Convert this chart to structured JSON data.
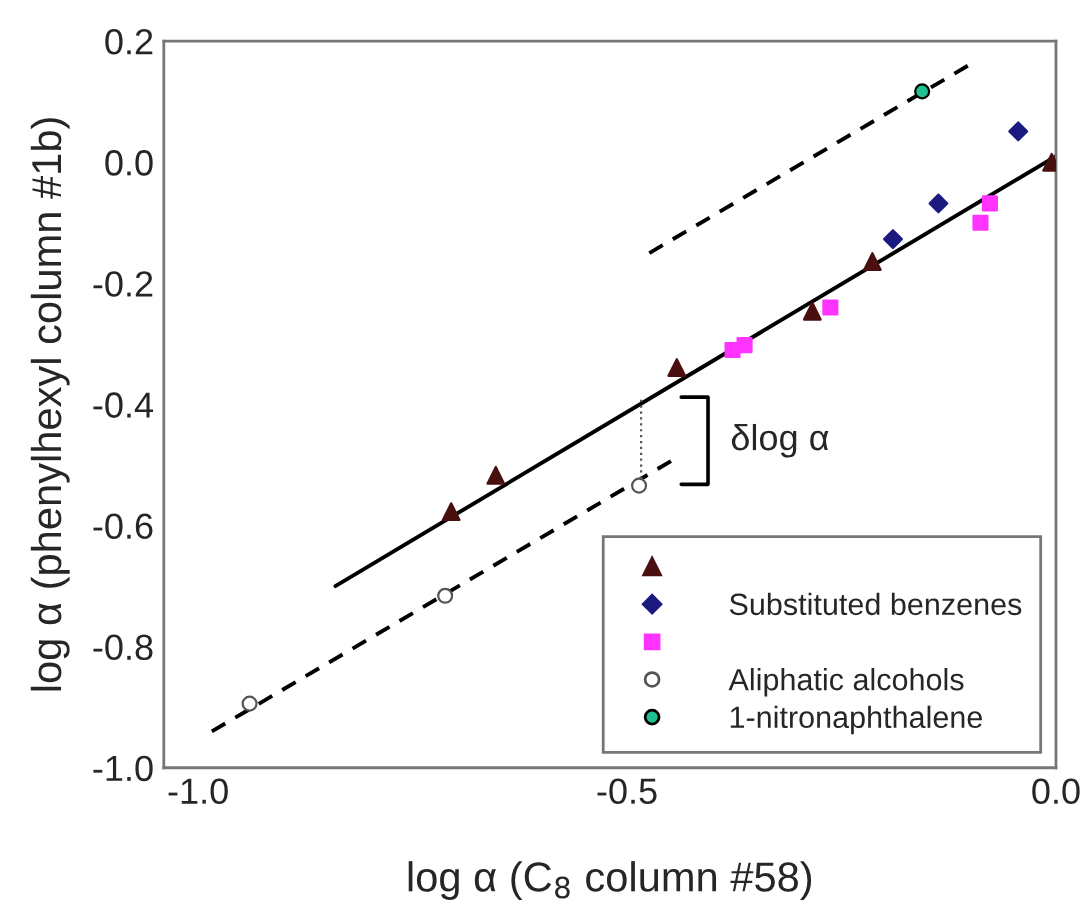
{
  "chart_data": {
    "type": "scatter",
    "xlabel": "log α (C$_{8}$ column #58)",
    "ylabel": "log α (phenylhexyl column #1b)",
    "xlim": [
      -1.04,
      0.0
    ],
    "ylim": [
      -1.0,
      0.2
    ],
    "xticks": [
      {
        "value": -1.0,
        "label": "-1.0"
      },
      {
        "value": -0.5,
        "label": "-0.5"
      },
      {
        "value": 0.0,
        "label": "0.0"
      }
    ],
    "yticks": [
      {
        "value": -1.0,
        "label": "-1.0"
      },
      {
        "value": -0.8,
        "label": "-0.8"
      },
      {
        "value": -0.6,
        "label": "-0.6"
      },
      {
        "value": -0.4,
        "label": "-0.4"
      },
      {
        "value": -0.2,
        "label": "-0.2"
      },
      {
        "value": 0.0,
        "label": "0.0"
      },
      {
        "value": 0.2,
        "label": "0.2"
      }
    ],
    "legend": "bottom right",
    "grid": false,
    "annotations": [
      "δlog α"
    ],
    "series": [
      {
        "color": "#4a1010",
        "marker": "triangle",
        "x": [
          -0.005,
          -0.214,
          -0.284,
          -0.442,
          -0.653,
          -0.705
        ],
        "values": [
          0.0,
          -0.164,
          -0.246,
          -0.339,
          -0.517,
          -0.577
        ]
      },
      {
        "name": "Substituted benzenes",
        "color": "#1a1a80",
        "marker": "diamond",
        "x": [
          -0.044,
          -0.137,
          -0.19
        ],
        "values": [
          0.051,
          -0.068,
          -0.127
        ]
      },
      {
        "color": "#ff33ff",
        "marker": "square",
        "x": [
          -0.077,
          -0.088,
          -0.263,
          -0.363,
          -0.377
        ],
        "values": [
          -0.068,
          -0.1,
          -0.24,
          -0.302,
          -0.31
        ]
      },
      {
        "name": "Aliphatic alcohols",
        "color": "#ffffff",
        "marker": "circle",
        "x": [
          -0.486,
          -0.712,
          -0.94
        ],
        "values": [
          -0.534,
          -0.716,
          -0.894
        ]
      },
      {
        "name": "1-nitronaphthalene",
        "color": "#20c090",
        "marker": "circle",
        "x": [
          -0.156
        ],
        "values": [
          0.117
        ]
      },
      {
        "type": "line",
        "color": "#000000",
        "line_style": "solid",
        "x": [
          -0.84,
          0.0
        ],
        "values": [
          -0.7,
          0.01
        ]
      },
      {
        "type": "line",
        "color": "#000000",
        "line_style": "dashed",
        "x": [
          -0.984,
          -0.442
        ],
        "values": [
          -0.94,
          -0.488
        ]
      },
      {
        "type": "line",
        "color": "#000000",
        "line_style": "dashed",
        "x": [
          -0.474,
          -0.102
        ],
        "values": [
          -0.15,
          0.16
        ]
      }
    ]
  }
}
